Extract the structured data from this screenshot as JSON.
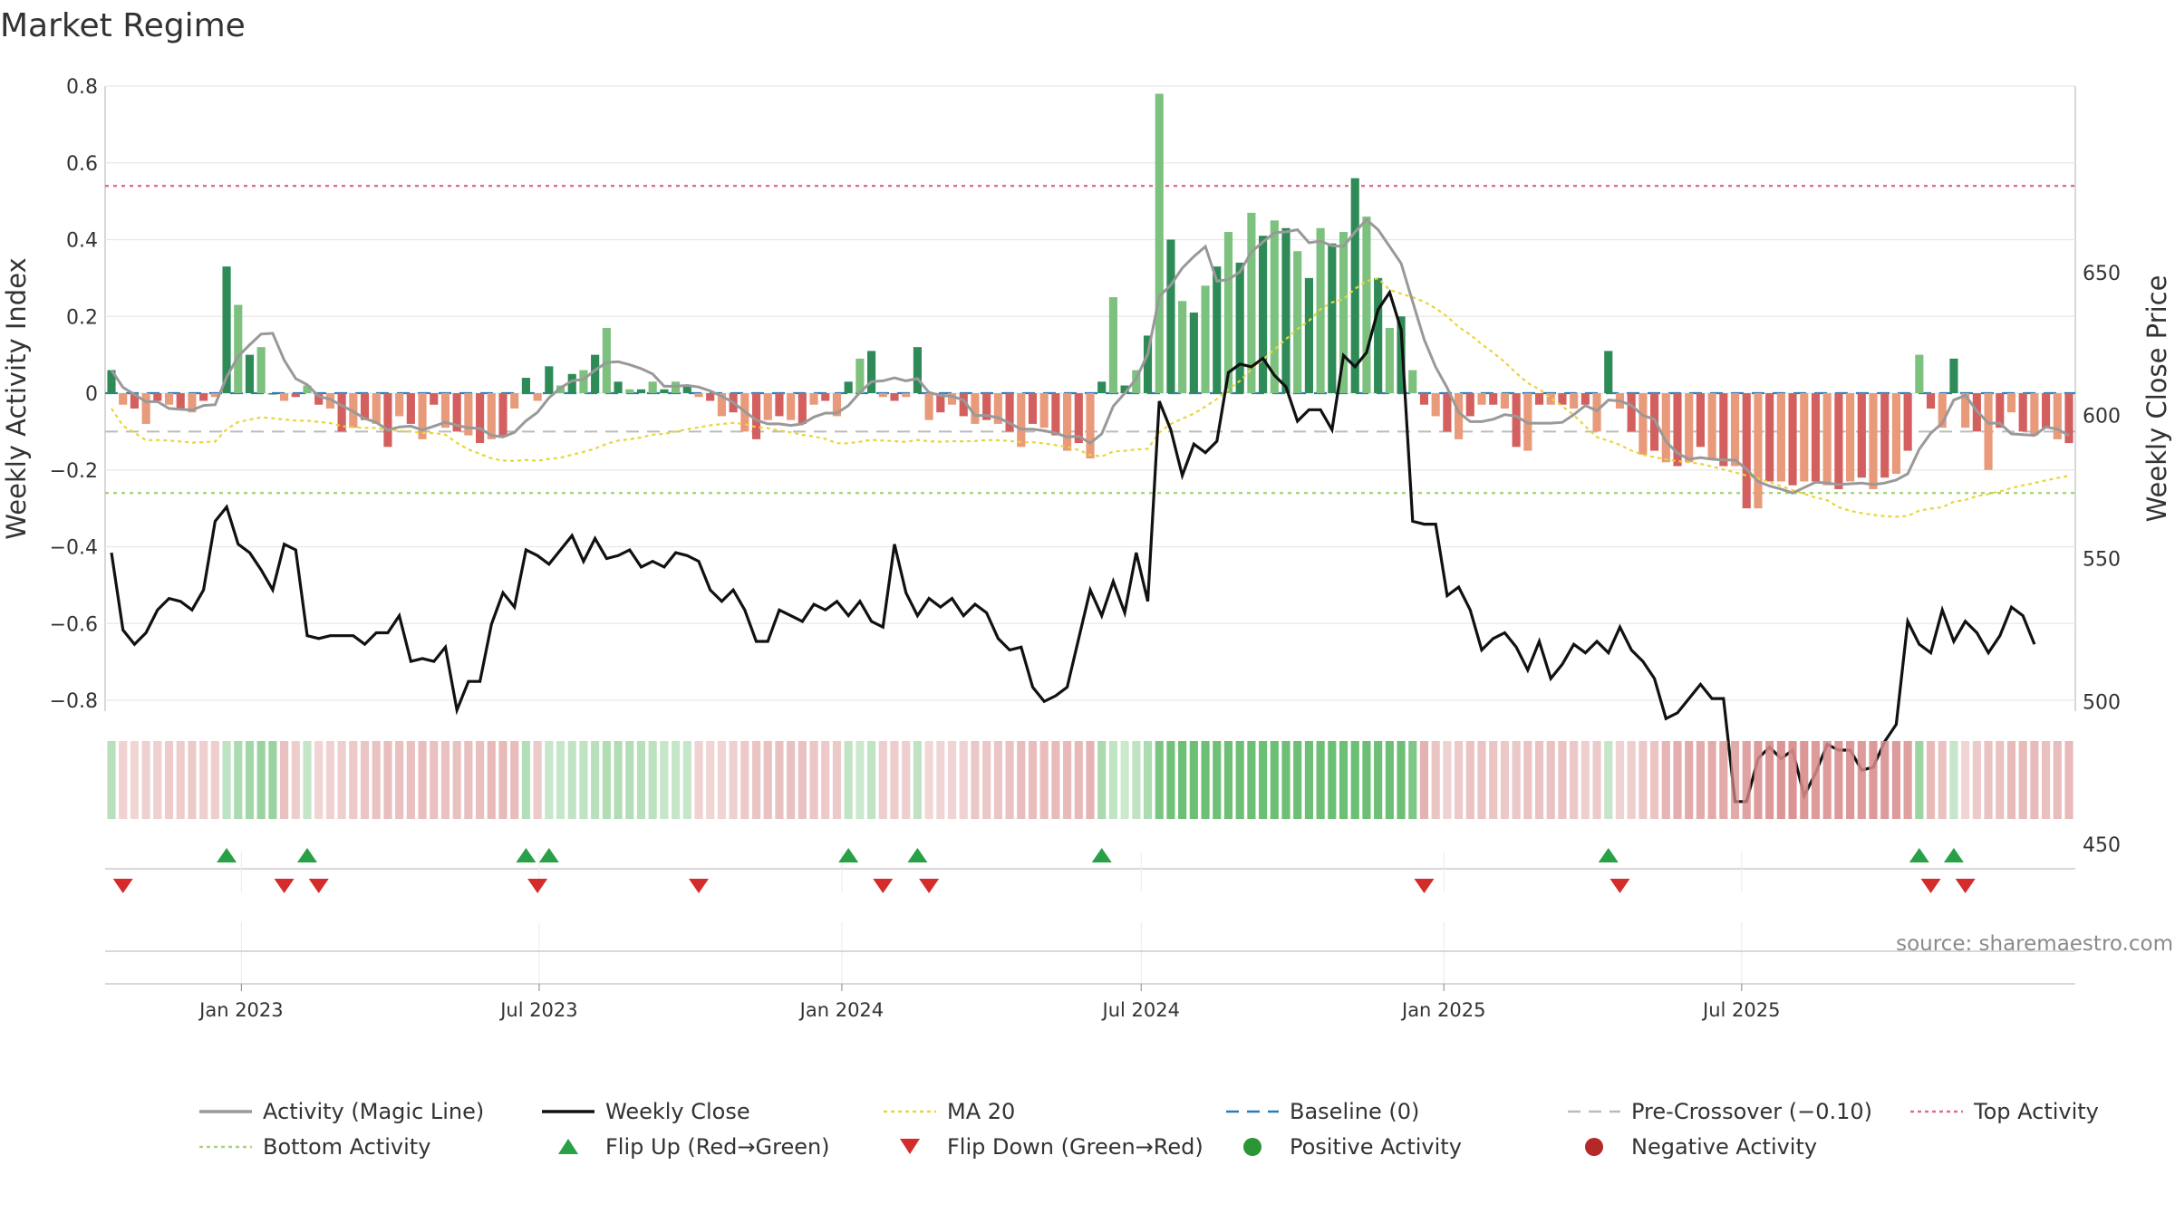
{
  "title": "Market Regime",
  "source": "source: sharemaestro.com",
  "chart_data": {
    "type": "bar",
    "title": "Market Regime",
    "ylabel_left": "Weekly Activity Index",
    "ylabel_right": "Weekly Close Price",
    "ylim_left": [
      -0.85,
      0.8
    ],
    "ylim_right": [
      445,
      667
    ],
    "yticks_left": [
      "0.8",
      "0.6",
      "0.4",
      "0.2",
      "0",
      "−0.2",
      "−0.4",
      "−0.6",
      "−0.8"
    ],
    "yticks_left_values": [
      0.8,
      0.6,
      0.4,
      0.2,
      0,
      -0.2,
      -0.4,
      -0.6,
      -0.8
    ],
    "yticks_right": [
      "650",
      "600",
      "550",
      "500",
      "450"
    ],
    "yticks_right_values": [
      650,
      600,
      550,
      500,
      450
    ],
    "x_start": "2022-10-14",
    "x_step_days": 7,
    "xticks": [
      {
        "label": "Jan 2023",
        "date": "2023-01-01"
      },
      {
        "label": "Jul 2023",
        "date": "2023-07-01"
      },
      {
        "label": "Jan 2024",
        "date": "2024-01-01"
      },
      {
        "label": "Jul 2024",
        "date": "2024-07-01"
      },
      {
        "label": "Jan 2025",
        "date": "2025-01-01"
      },
      {
        "label": "Jul 2025",
        "date": "2025-07-01"
      }
    ],
    "reference_lines": {
      "top_activity": 0.54,
      "bottom_activity": -0.26,
      "pre_crossover": -0.1,
      "baseline": 0
    },
    "activity": [
      0.06,
      -0.03,
      -0.04,
      -0.08,
      -0.02,
      -0.03,
      -0.04,
      -0.05,
      -0.02,
      -0.01,
      0.33,
      0.23,
      0.1,
      0.12,
      0,
      -0.02,
      -0.01,
      0.02,
      -0.03,
      -0.04,
      -0.1,
      -0.09,
      -0.07,
      -0.08,
      -0.14,
      -0.06,
      -0.08,
      -0.12,
      -0.03,
      -0.09,
      -0.1,
      -0.11,
      -0.13,
      -0.12,
      -0.11,
      -0.04,
      0.04,
      -0.02,
      0.07,
      0.02,
      0.05,
      0.06,
      0.1,
      0.17,
      0.03,
      0.01,
      0.01,
      0.03,
      0.01,
      0.03,
      0.02,
      -0.01,
      -0.02,
      -0.06,
      -0.05,
      -0.1,
      -0.12,
      -0.07,
      -0.06,
      -0.07,
      -0.08,
      -0.03,
      -0.02,
      -0.06,
      0.03,
      0.09,
      0.11,
      -0.01,
      -0.02,
      -0.01,
      0.12,
      -0.07,
      -0.05,
      -0.03,
      -0.06,
      -0.08,
      -0.07,
      -0.08,
      -0.1,
      -0.14,
      -0.08,
      -0.09,
      -0.11,
      -0.15,
      -0.13,
      -0.17,
      0.03,
      0.25,
      0.02,
      0.06,
      0.15,
      0.78,
      0.4,
      0.24,
      0.21,
      0.28,
      0.33,
      0.42,
      0.34,
      0.47,
      0.41,
      0.45,
      0.43,
      0.37,
      0.3,
      0.43,
      0.39,
      0.42,
      0.56,
      0.46,
      0.3,
      0.17,
      0.2,
      0.06,
      -0.03,
      -0.06,
      -0.1,
      -0.12,
      -0.06,
      -0.03,
      -0.03,
      -0.04,
      -0.14,
      -0.15,
      -0.03,
      -0.03,
      -0.03,
      -0.04,
      -0.03,
      -0.1,
      0.11,
      -0.04,
      -0.1,
      -0.16,
      -0.15,
      -0.18,
      -0.19,
      -0.18,
      -0.14,
      -0.17,
      -0.19,
      -0.19,
      -0.3,
      -0.3,
      -0.23,
      -0.23,
      -0.24,
      -0.23,
      -0.23,
      -0.24,
      -0.25,
      -0.23,
      -0.22,
      -0.25,
      -0.22,
      -0.21,
      -0.15,
      0.1,
      -0.04,
      -0.09,
      0.09,
      -0.09,
      -0.1,
      -0.2,
      -0.09,
      -0.05,
      -0.1,
      -0.11,
      -0.09,
      -0.12,
      -0.13
    ],
    "weekly_close": [
      552,
      525,
      520,
      524,
      532,
      536,
      535,
      532,
      539,
      563,
      568,
      555,
      552,
      546,
      539,
      555,
      553,
      523,
      522,
      523,
      523,
      523,
      520,
      524,
      524,
      530,
      514,
      515,
      514,
      519,
      497,
      507,
      507,
      527,
      538,
      533,
      553,
      551,
      548,
      553,
      558,
      549,
      557,
      550,
      551,
      553,
      547,
      549,
      547,
      552,
      551,
      549,
      539,
      535,
      539,
      532,
      521,
      521,
      532,
      530,
      528,
      534,
      532,
      535,
      530,
      535,
      528,
      526,
      555,
      538,
      530,
      536,
      533,
      536,
      530,
      534,
      531,
      522,
      518,
      519,
      505,
      500,
      502,
      505,
      522,
      539,
      530,
      542,
      531,
      552,
      535,
      605,
      595,
      579,
      590,
      587,
      591,
      615,
      618,
      617,
      620,
      614,
      610,
      598,
      602,
      602,
      595,
      621,
      617,
      622,
      637,
      643,
      630,
      563,
      562,
      562,
      537,
      540,
      532,
      518,
      522,
      524,
      519,
      511,
      521,
      508,
      513,
      520,
      517,
      521,
      517,
      526,
      518,
      514,
      508,
      494,
      496,
      501,
      506,
      501,
      501,
      465,
      465,
      480,
      484,
      480,
      483,
      467,
      475,
      485,
      483,
      483,
      476,
      477,
      486,
      492,
      528,
      520,
      517,
      532,
      521,
      528,
      524,
      517,
      523,
      533,
      530,
      520
    ]
  },
  "legend": [
    {
      "key": "magic",
      "label": "Activity (Magic Line)",
      "symbol": "line",
      "color": "#999999"
    },
    {
      "key": "close",
      "label": "Weekly Close",
      "symbol": "line",
      "color": "#111111"
    },
    {
      "key": "ma20",
      "label": "MA 20",
      "symbol": "dotted",
      "color": "#e9d43a"
    },
    {
      "key": "baseline",
      "label": "Baseline (0)",
      "symbol": "dashed",
      "color": "#2c7bb6"
    },
    {
      "key": "precross",
      "label": "Pre-Crossover (−0.10)",
      "symbol": "dashed",
      "color": "#bbbbbb"
    },
    {
      "key": "top",
      "label": "Top Activity",
      "symbol": "dotted",
      "color": "#e06b8a"
    },
    {
      "key": "bottom",
      "label": "Bottom Activity",
      "symbol": "dotted",
      "color": "#a9d27a"
    },
    {
      "key": "flipup",
      "label": "Flip Up (Red→Green)",
      "symbol": "triangle-up",
      "color": "#27a046"
    },
    {
      "key": "flipdown",
      "label": "Flip Down (Green→Red)",
      "symbol": "triangle-down",
      "color": "#d42b2b"
    },
    {
      "key": "pos",
      "label": "Positive Activity",
      "symbol": "dot",
      "color": "#2a9635"
    },
    {
      "key": "neg",
      "label": "Negative Activity",
      "symbol": "dot",
      "color": "#b52828"
    }
  ],
  "colors": {
    "pos_strong": "#2e8b57",
    "pos_light": "#7dc17f",
    "neg_strong": "#d45f5f",
    "neg_light": "#e89a7a",
    "regime_pos": "#a8d8a8",
    "regime_neg": "#f0c8c8"
  }
}
